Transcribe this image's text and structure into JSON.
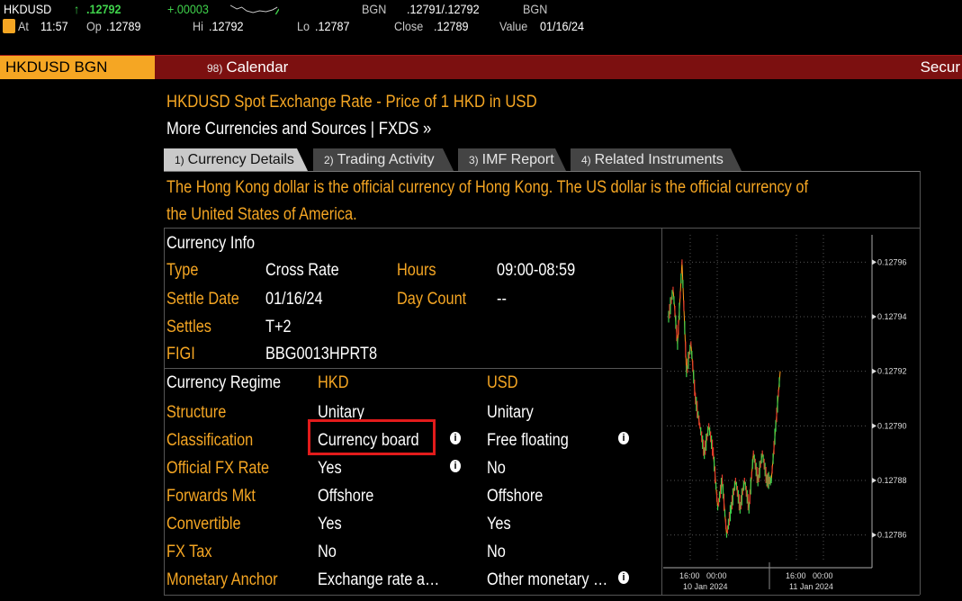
{
  "ticker": {
    "symbol": "HKDUSD",
    "arrow": "↑",
    "last": ".12792",
    "change": "+.00003",
    "source1": "BGN",
    "bid_ask": ".12791/.12792",
    "source2": "BGN",
    "alert_icon": "alert-icon",
    "at_label": "At",
    "time": "11:57",
    "op_label": "Op",
    "open": ".12789",
    "hi_label": "Hi",
    "high": ".12792",
    "lo_label": "Lo",
    "low": ".12787",
    "close_label": "Close",
    "close": ".12789",
    "value_label": "Value",
    "value_date": "01/16/24"
  },
  "command_bar": {
    "security": "HKDUSD BGN Curncy",
    "calendar_num": "98)",
    "calendar_label": "Calendar",
    "right_label": "Secur"
  },
  "header": {
    "title": "HKDUSD Spot Exchange Rate - Price of 1 HKD in USD",
    "subtitle": "More Currencies and Sources | FXDS »"
  },
  "tabs": [
    {
      "num": "1)",
      "label": "Currency Details",
      "active": true
    },
    {
      "num": "2)",
      "label": "Trading Activity",
      "active": false
    },
    {
      "num": "3)",
      "label": "IMF Report",
      "active": false
    },
    {
      "num": "4)",
      "label": "Related Instruments",
      "active": false
    }
  ],
  "description": {
    "line1": "The Hong Kong dollar is the official currency of Hong Kong.  The US dollar is the official currency of",
    "line2": "the United States of America."
  },
  "currency_info": {
    "heading": "Currency Info",
    "type_label": "Type",
    "type_value": "Cross Rate",
    "hours_label": "Hours",
    "hours_value": "09:00-08:59",
    "settle_date_label": "Settle Date",
    "settle_date_value": "01/16/24",
    "day_count_label": "Day Count",
    "day_count_value": "--",
    "settles_label": "Settles",
    "settles_value": "T+2",
    "figi_label": "FIGI",
    "figi_value": "BBG0013HPRT8"
  },
  "regime": {
    "heading": "Currency Regime",
    "col1": "HKD",
    "col2": "USD",
    "rows": [
      {
        "label": "Structure",
        "hkd": "Unitary",
        "usd": "Unitary"
      },
      {
        "label": "Classification",
        "hkd": "Currency board",
        "usd": "Free floating"
      },
      {
        "label": "Official FX Rate",
        "hkd": "Yes",
        "usd": "No"
      },
      {
        "label": "Forwards Mkt",
        "hkd": "Offshore",
        "usd": "Offshore"
      },
      {
        "label": "Convertible",
        "hkd": "Yes",
        "usd": "Yes"
      },
      {
        "label": "FX Tax",
        "hkd": "No",
        "usd": "No"
      },
      {
        "label": "Monetary Anchor",
        "hkd": "Exchange rate a…",
        "usd": "Other monetary …"
      }
    ]
  },
  "chart_data": {
    "type": "line",
    "title": "",
    "y_ticks": [
      "0.12796",
      "0.12794",
      "0.12792",
      "0.12790",
      "0.12788",
      "0.12786"
    ],
    "x_ticks_time": [
      "16:00",
      "00:00",
      "16:00",
      "00:00"
    ],
    "x_ticks_date": [
      "10 Jan 2024",
      "11 Jan 2024"
    ],
    "ylim": [
      0.12785,
      0.12797
    ],
    "values": [
      0.12794,
      0.12795,
      0.12793,
      0.12796,
      0.12792,
      0.12793,
      0.12791,
      0.1279,
      0.12789,
      0.1279,
      0.12789,
      0.12787,
      0.12788,
      0.12786,
      0.12787,
      0.12788,
      0.12787,
      0.12788,
      0.12787,
      0.12789,
      0.12788,
      0.12789,
      0.12788,
      0.12788,
      0.1279,
      0.12792
    ],
    "colors": {
      "up": "#3fd14b",
      "down": "#e23a2a",
      "line": "#ff9a1a"
    }
  },
  "icons": {
    "info": "info-icon"
  }
}
